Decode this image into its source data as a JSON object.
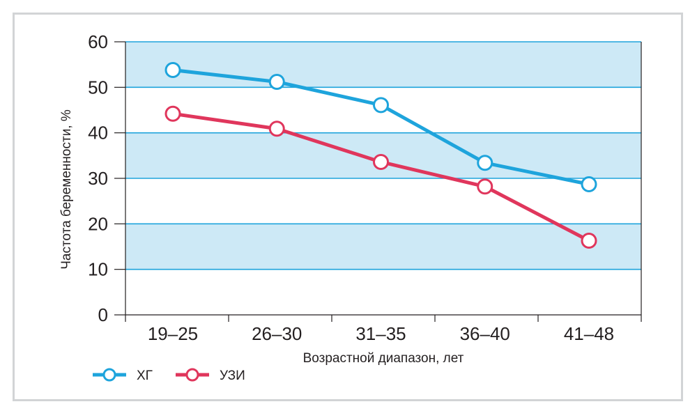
{
  "chart_data": {
    "type": "line",
    "categories": [
      "19–25",
      "26–30",
      "31–35",
      "36–40",
      "41–48"
    ],
    "xlabel": "Возрастной диапазон, лет",
    "ylabel": "Частота беременности, %",
    "ylim": [
      0,
      60
    ],
    "yticks": [
      "0",
      "10",
      "20",
      "30",
      "40",
      "50",
      "60"
    ],
    "grid": true,
    "legend_position": "bottom-left",
    "series": [
      {
        "name": "ХГ",
        "color": "#1ea4dc",
        "values": [
          53.8,
          51.2,
          46.1,
          33.4,
          28.7
        ]
      },
      {
        "name": "УЗИ",
        "color": "#e0365c",
        "values": [
          44.2,
          40.9,
          33.6,
          28.2,
          16.3
        ]
      }
    ],
    "band_colors": [
      "#cde9f6",
      "#ffffff"
    ],
    "gridline_color": "#1ea4dc"
  }
}
